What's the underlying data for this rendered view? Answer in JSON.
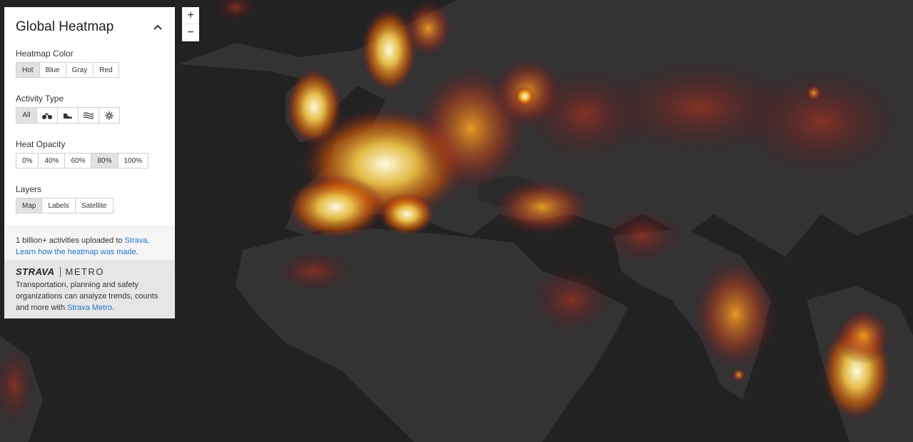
{
  "panel": {
    "title": "Global Heatmap",
    "heatmap_color": {
      "label": "Heatmap Color",
      "options": [
        "Hot",
        "Blue",
        "Gray",
        "Red"
      ],
      "selected": "Hot"
    },
    "activity_type": {
      "label": "Activity Type",
      "all_label": "All",
      "icons": [
        "bike-icon",
        "run-shoe-icon",
        "water-waves-icon",
        "snowflake-icon"
      ],
      "selected": "All"
    },
    "heat_opacity": {
      "label": "Heat Opacity",
      "options": [
        "0%",
        "40%",
        "60%",
        "80%",
        "100%"
      ],
      "selected": "80%"
    },
    "layers": {
      "label": "Layers",
      "options": [
        "Map",
        "Labels",
        "Satellite"
      ],
      "selected": "Map"
    },
    "info": {
      "line1_prefix": "1 billion+ activities uploaded to ",
      "line1_link": "Strava",
      "line1_suffix": ".",
      "line2_link": "Learn how the heatmap was made",
      "line2_suffix": "."
    }
  },
  "metro": {
    "brand": "STRAVA",
    "product": "METRO",
    "text": "Transportation, planning and safety organizations can analyze trends, counts and more with ",
    "link": "Strava Metro",
    "suffix": "."
  },
  "zoom": {
    "in": "+",
    "out": "−"
  },
  "colors": {
    "map_bg": "#262626",
    "land": "#333333",
    "heat_low": "#5a0f2a",
    "heat_mid": "#c0392b",
    "heat_high": "#f5a623",
    "heat_peak": "#fff3c4",
    "link": "#1f77c9"
  }
}
